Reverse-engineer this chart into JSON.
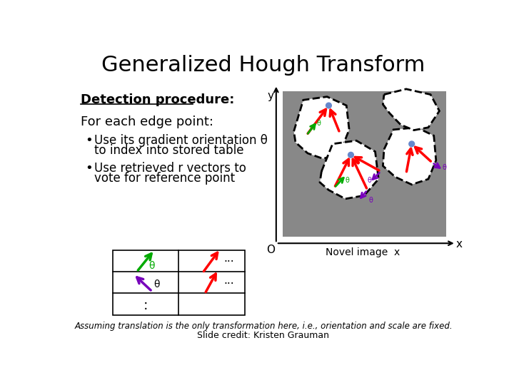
{
  "title": "Generalized Hough Transform",
  "background_color": "#ffffff",
  "title_fontsize": 22,
  "title_color": "#000000",
  "detection_label": "Detection procedure:",
  "for_each_label": "For each edge point:",
  "bullet1_line1": "Use its gradient orientation θ",
  "bullet1_line2": "to index into stored table",
  "bullet2_line1": "Use retrieved r vectors to",
  "bullet2_line2": "vote for reference point",
  "footnote": "Assuming translation is the only transformation here, i.e., orientation and scale are fixed.",
  "slide_credit": "Slide credit: Kristen Grauman",
  "novel_image_label": "Novel image",
  "axis_label_x": "x",
  "axis_label_y": "y",
  "axis_origin": "O"
}
